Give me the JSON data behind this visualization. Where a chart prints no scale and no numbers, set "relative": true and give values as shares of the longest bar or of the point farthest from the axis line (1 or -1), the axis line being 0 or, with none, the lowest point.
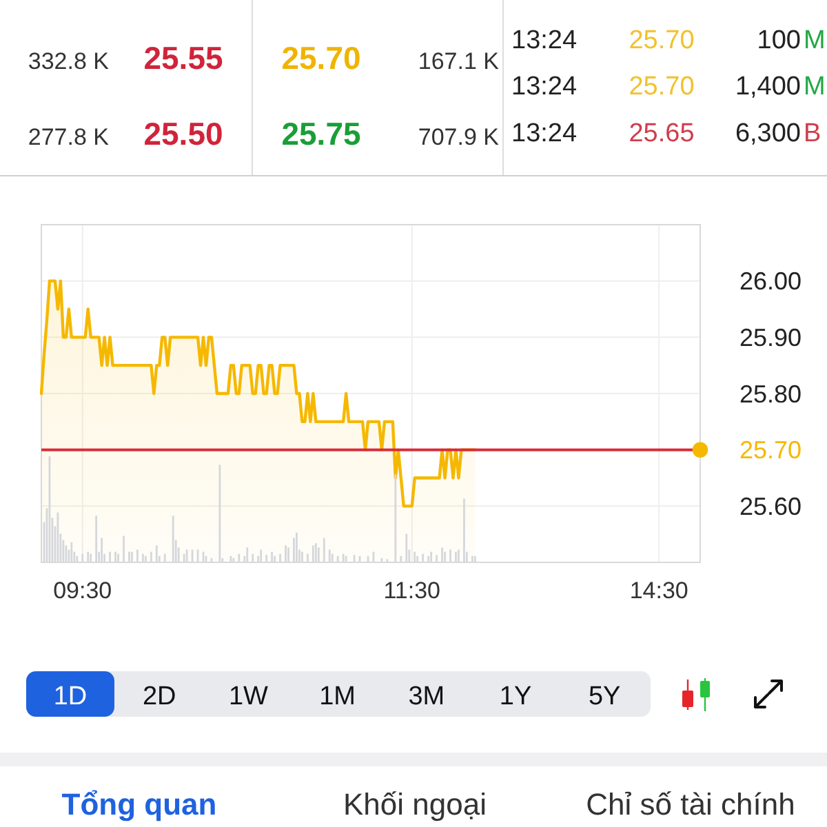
{
  "chart_data": [
    {
      "type": "other",
      "annotations": [
        "332.8 K",
        "25.55",
        "25.70",
        "167.1 K",
        "277.8 K",
        "25.50",
        "25.75",
        "707.9 K",
        "13:24",
        "25.70",
        "100",
        "M",
        "13:24",
        "25.70",
        "1,400",
        "M",
        "13:24",
        "25.65",
        "6,300",
        "B"
      ],
      "colors": [
        "#333333",
        "#d0243a",
        "#f0b400",
        "#333333",
        "#333333",
        "#d0243a",
        "#1a9e37",
        "#333333",
        "#222222",
        "#f2c12e",
        "#222222",
        "#22a845",
        "#222222",
        "#f2c12e",
        "#222222",
        "#22a845",
        "#222222",
        "#d03d4c",
        "#222222",
        "#d03d4c"
      ]
    },
    {
      "type": "area",
      "categories": [
        null,
        null,
        null,
        null,
        null,
        null,
        null,
        null,
        null,
        null,
        null,
        null,
        null,
        null,
        null,
        "09:30",
        null,
        null,
        null,
        null,
        null,
        null,
        null,
        null,
        null,
        null,
        null,
        null,
        null,
        null,
        null,
        null,
        null,
        null,
        null,
        null,
        null,
        null,
        null,
        null,
        null,
        null,
        null,
        null,
        null,
        null,
        null,
        null,
        null,
        null,
        null,
        null,
        null,
        null,
        null,
        null,
        null,
        null,
        null,
        null,
        null,
        null,
        null,
        null,
        null,
        null,
        null,
        null,
        null,
        null,
        null,
        null,
        null,
        null,
        null,
        null,
        null,
        null,
        null,
        null,
        null,
        null,
        null,
        null,
        null,
        null,
        null,
        null,
        null,
        null,
        null,
        null,
        null,
        null,
        null,
        null,
        null,
        null,
        null,
        null,
        null,
        null,
        null,
        null,
        null,
        null,
        null,
        null,
        null,
        null,
        null,
        null,
        null,
        null,
        null,
        null,
        null,
        null,
        null,
        null,
        null,
        null,
        null,
        null,
        null,
        null,
        null,
        null,
        null,
        null,
        null,
        null,
        null,
        null,
        null,
        "11:30",
        null,
        null,
        null,
        null,
        null,
        null,
        null,
        null,
        null,
        null,
        null,
        null,
        null,
        null,
        null,
        null,
        null,
        null,
        null,
        null,
        null,
        null,
        null,
        null,
        null,
        null,
        null,
        null,
        null,
        null,
        null,
        null,
        null,
        null,
        null,
        null,
        null,
        null,
        null,
        null,
        null,
        null,
        null,
        null,
        null,
        null,
        null,
        null,
        null,
        null,
        null,
        null,
        null,
        null,
        null,
        null,
        null,
        null,
        null,
        null,
        null,
        null,
        null,
        null,
        null,
        null,
        null,
        null,
        null,
        null,
        null,
        null,
        null,
        null,
        null,
        null,
        null,
        null,
        null,
        null,
        null,
        null,
        null,
        null,
        null,
        null,
        null,
        null,
        null,
        "14:30",
        null,
        null,
        null,
        null,
        null,
        null,
        null,
        null,
        null,
        null,
        null,
        null,
        null,
        null,
        null
      ],
      "ylim": [
        25.5,
        26.1
      ],
      "yticks": [
        {
          "value": 25.6,
          "label": "25.60"
        },
        {
          "value": 25.7,
          "label": "25.70"
        },
        {
          "value": 25.8,
          "label": "25.80"
        },
        {
          "value": 25.9,
          "label": "25.90"
        },
        {
          "value": 26,
          "label": "26.00"
        }
      ],
      "grid": true,
      "ref_lines": [
        {
          "axis": "y",
          "value": 25.7,
          "color": "#d92d3a"
        }
      ],
      "series": [
        {
          "type": "area",
          "color": "#f5b800",
          "values": [
            25.8,
            25.87,
            25.93,
            26,
            26,
            26,
            25.95,
            26,
            25.9,
            25.9,
            25.95,
            25.9,
            25.9,
            25.9,
            25.9,
            25.9,
            25.9,
            25.95,
            25.9,
            25.9,
            25.9,
            25.9,
            25.85,
            25.9,
            25.85,
            25.9,
            25.85,
            25.85,
            25.85,
            25.85,
            25.85,
            25.85,
            25.85,
            25.85,
            25.85,
            25.85,
            25.85,
            25.85,
            25.85,
            25.85,
            25.85,
            25.8,
            25.85,
            25.85,
            25.9,
            25.9,
            25.85,
            25.9,
            25.9,
            25.9,
            25.9,
            25.9,
            25.9,
            25.9,
            25.9,
            25.9,
            25.9,
            25.9,
            25.85,
            25.9,
            25.85,
            25.9,
            25.9,
            25.85,
            25.8,
            25.8,
            25.8,
            25.8,
            25.8,
            25.85,
            25.85,
            25.8,
            25.8,
            25.85,
            25.85,
            25.85,
            25.85,
            25.8,
            25.8,
            25.85,
            25.85,
            25.8,
            25.8,
            25.85,
            25.85,
            25.8,
            25.8,
            25.85,
            25.85,
            25.85,
            25.85,
            25.85,
            25.85,
            25.8,
            25.8,
            25.75,
            25.75,
            25.8,
            25.75,
            25.8,
            25.75,
            25.75,
            25.75,
            25.75,
            25.75,
            25.75,
            25.75,
            25.75,
            25.75,
            25.75,
            25.75,
            25.8,
            25.75,
            25.75,
            25.75,
            25.75,
            25.75,
            25.75,
            25.7,
            25.75,
            25.75,
            25.75,
            25.75,
            25.75,
            25.7,
            25.75,
            25.75,
            25.75,
            25.75,
            25.65,
            25.7,
            25.65,
            25.6,
            25.6,
            25.6,
            25.6,
            25.65,
            25.65,
            25.65,
            25.65,
            25.65,
            25.65,
            25.65,
            25.65,
            25.65,
            25.65,
            25.7,
            25.65,
            25.7,
            25.7,
            25.65,
            25.7,
            25.65,
            25.7,
            25.7,
            25.7,
            25.7,
            25.7,
            25.7,
            null,
            null,
            null,
            null,
            null,
            null,
            null,
            null,
            null,
            null,
            null,
            null,
            null,
            null,
            null,
            null,
            null,
            null,
            null,
            null,
            null,
            null,
            null,
            null,
            null,
            null,
            null,
            null,
            null,
            null,
            null,
            null,
            null,
            null,
            null,
            null,
            null,
            null,
            null,
            null,
            null,
            null,
            null,
            null,
            null,
            null,
            null,
            null,
            null,
            null,
            null,
            null,
            null,
            null,
            null,
            null,
            null,
            null,
            null,
            null,
            null,
            null,
            null,
            null,
            null,
            null,
            null,
            null,
            null,
            null,
            null,
            null,
            null,
            null,
            null,
            null,
            null,
            null,
            null,
            null,
            null,
            null
          ]
        },
        {
          "type": "scatter",
          "color": "#f5b800",
          "marker": "circle",
          "values": [
            null,
            null,
            null,
            null,
            null,
            null,
            null,
            null,
            null,
            null,
            null,
            null,
            null,
            null,
            null,
            null,
            null,
            null,
            null,
            null,
            null,
            null,
            null,
            null,
            null,
            null,
            null,
            null,
            null,
            null,
            null,
            null,
            null,
            null,
            null,
            null,
            null,
            null,
            null,
            null,
            null,
            null,
            null,
            null,
            null,
            null,
            null,
            null,
            null,
            null,
            null,
            null,
            null,
            null,
            null,
            null,
            null,
            null,
            null,
            null,
            null,
            null,
            null,
            null,
            null,
            null,
            null,
            null,
            null,
            null,
            null,
            null,
            null,
            null,
            null,
            null,
            null,
            null,
            null,
            null,
            null,
            null,
            null,
            null,
            null,
            null,
            null,
            null,
            null,
            null,
            null,
            null,
            null,
            null,
            null,
            null,
            null,
            null,
            null,
            null,
            null,
            null,
            null,
            null,
            null,
            null,
            null,
            null,
            null,
            null,
            null,
            null,
            null,
            null,
            null,
            null,
            null,
            null,
            null,
            null,
            null,
            null,
            null,
            null,
            null,
            null,
            null,
            null,
            null,
            null,
            null,
            null,
            null,
            null,
            null,
            null,
            null,
            null,
            null,
            null,
            null,
            null,
            null,
            null,
            null,
            null,
            null,
            null,
            null,
            null,
            null,
            null,
            null,
            null,
            null,
            null,
            null,
            null,
            null,
            null,
            null,
            null,
            null,
            null,
            null,
            null,
            null,
            null,
            null,
            null,
            null,
            null,
            null,
            null,
            null,
            null,
            null,
            null,
            null,
            null,
            null,
            null,
            null,
            null,
            null,
            null,
            null,
            null,
            null,
            null,
            null,
            null,
            null,
            null,
            null,
            null,
            null,
            null,
            null,
            null,
            null,
            null,
            null,
            null,
            null,
            null,
            null,
            null,
            null,
            null,
            null,
            null,
            null,
            null,
            null,
            null,
            null,
            null,
            null,
            null,
            null,
            null,
            null,
            null,
            null,
            null,
            null,
            null,
            null,
            null,
            null,
            null,
            null,
            null,
            null,
            null,
            null,
            null,
            null,
            null,
            25.7
          ]
        }
      ]
    },
    {
      "type": "bar",
      "relative": true,
      "color": "#d5d7dc",
      "categories": [
        null,
        null,
        null,
        null,
        null,
        null,
        null,
        null,
        null,
        null,
        null,
        null,
        null,
        null,
        null,
        null,
        null,
        null,
        null,
        null,
        null,
        null,
        null,
        null,
        null,
        null,
        null,
        null,
        null,
        null,
        null,
        null,
        null,
        null,
        null,
        null,
        null,
        null,
        null,
        null,
        null,
        null,
        null,
        null,
        null,
        null,
        null,
        null,
        null,
        null,
        null,
        null,
        null,
        null,
        null,
        null,
        null,
        null,
        null,
        null,
        null,
        null,
        null,
        null,
        null,
        null,
        null,
        null,
        null,
        null,
        null,
        null,
        null,
        null,
        null,
        null,
        null,
        null,
        null,
        null,
        null,
        null,
        null,
        null,
        null,
        null,
        null,
        null,
        null,
        null,
        null,
        null,
        null,
        null,
        null,
        null,
        null,
        null,
        null,
        null,
        null,
        null,
        null,
        null,
        null,
        null,
        null,
        null,
        null,
        null,
        null,
        null,
        null,
        null,
        null,
        null,
        null,
        null,
        null,
        null,
        null,
        null,
        null,
        null,
        null,
        null,
        null,
        null,
        null,
        null,
        null,
        null,
        null,
        null,
        null,
        null,
        null,
        null,
        null,
        null,
        null,
        null,
        null,
        null,
        null,
        null,
        null,
        null,
        null,
        null,
        null,
        null,
        null,
        null,
        null,
        null,
        null,
        null,
        null,
        null,
        null,
        null,
        null,
        null,
        null,
        null,
        null,
        null,
        null,
        null,
        null,
        null,
        null,
        null,
        null,
        null,
        null,
        null,
        null,
        null,
        null,
        null,
        null,
        null,
        null,
        null,
        null,
        null,
        null,
        null,
        null,
        null,
        null,
        null,
        null,
        null,
        null,
        null,
        null,
        null,
        null,
        null,
        null,
        null,
        null,
        null,
        null,
        null,
        null,
        null,
        null,
        null,
        null,
        null,
        null,
        null,
        null,
        null,
        null,
        null,
        null,
        null,
        null,
        null,
        null,
        null,
        null,
        null,
        null,
        null,
        null,
        null,
        null,
        null,
        null,
        null,
        null,
        null,
        null,
        null,
        null
      ],
      "values": [
        null,
        0.38,
        0.51,
        1,
        0.42,
        0.34,
        0.47,
        0.27,
        0.21,
        0.16,
        0.12,
        0.19,
        0.1,
        0.06,
        null,
        0.08,
        null,
        0.1,
        0.08,
        null,
        0.44,
        0.1,
        0.23,
        0.08,
        null,
        0.1,
        null,
        0.1,
        0.08,
        null,
        0.25,
        null,
        0.1,
        0.1,
        null,
        0.12,
        null,
        0.08,
        0.06,
        null,
        0.1,
        null,
        0.16,
        0.06,
        null,
        0.08,
        null,
        null,
        0.44,
        0.21,
        0.14,
        null,
        0.08,
        0.12,
        null,
        0.12,
        null,
        0.12,
        null,
        0.1,
        0.06,
        null,
        0.04,
        null,
        null,
        0.92,
        0.04,
        null,
        null,
        0.06,
        0.04,
        null,
        0.08,
        null,
        0.06,
        0.14,
        null,
        0.08,
        null,
        0.06,
        0.12,
        null,
        0.07,
        null,
        0.1,
        0.06,
        null,
        0.08,
        null,
        0.16,
        0.14,
        null,
        0.23,
        0.28,
        0.12,
        0.1,
        null,
        0.08,
        null,
        0.16,
        0.18,
        0.14,
        null,
        0.23,
        null,
        0.12,
        0.08,
        null,
        0.06,
        null,
        0.08,
        0.06,
        null,
        null,
        0.07,
        null,
        0.06,
        null,
        null,
        0.06,
        null,
        0.1,
        null,
        null,
        0.04,
        null,
        0.03,
        null,
        null,
        0.83,
        null,
        0.06,
        null,
        0.27,
        0.12,
        null,
        0.1,
        0.06,
        null,
        0.08,
        null,
        0.06,
        0.1,
        null,
        0.07,
        null,
        0.14,
        0.1,
        null,
        0.12,
        null,
        0.1,
        0.12,
        null,
        0.6,
        0.1,
        null,
        0.06,
        0.06,
        null,
        null,
        null,
        null,
        null,
        null,
        null,
        null,
        null,
        null,
        null,
        null,
        null,
        null,
        null,
        null,
        null,
        null,
        null,
        null,
        null,
        null,
        null,
        null,
        null,
        null,
        null,
        null,
        null,
        null,
        null,
        null,
        null,
        null,
        null,
        null,
        null,
        null,
        null,
        null,
        null,
        null,
        null,
        null,
        null,
        null,
        null,
        null,
        null,
        null,
        null,
        null,
        null,
        null,
        null,
        null,
        null,
        null,
        null,
        null,
        null,
        null,
        null,
        null,
        null,
        null,
        null,
        null,
        null,
        null,
        null,
        null,
        null,
        null,
        null,
        null,
        null,
        null,
        null,
        null,
        null,
        null
      ]
    },
    {
      "type": "other",
      "annotations": [
        "1D",
        "2D",
        "1W",
        "1M",
        "3M",
        "1Y",
        "5Y"
      ],
      "colors": [
        "#ffffff",
        "#111111",
        "#111111",
        "#111111",
        "#111111",
        "#111111",
        "#111111"
      ]
    },
    {
      "type": "other",
      "annotations": [
        "Tổng quan",
        "Khối ngoại",
        "Chỉ số tài chính"
      ],
      "colors": [
        "#1f62df",
        "#333333",
        "#333333"
      ]
    }
  ]
}
